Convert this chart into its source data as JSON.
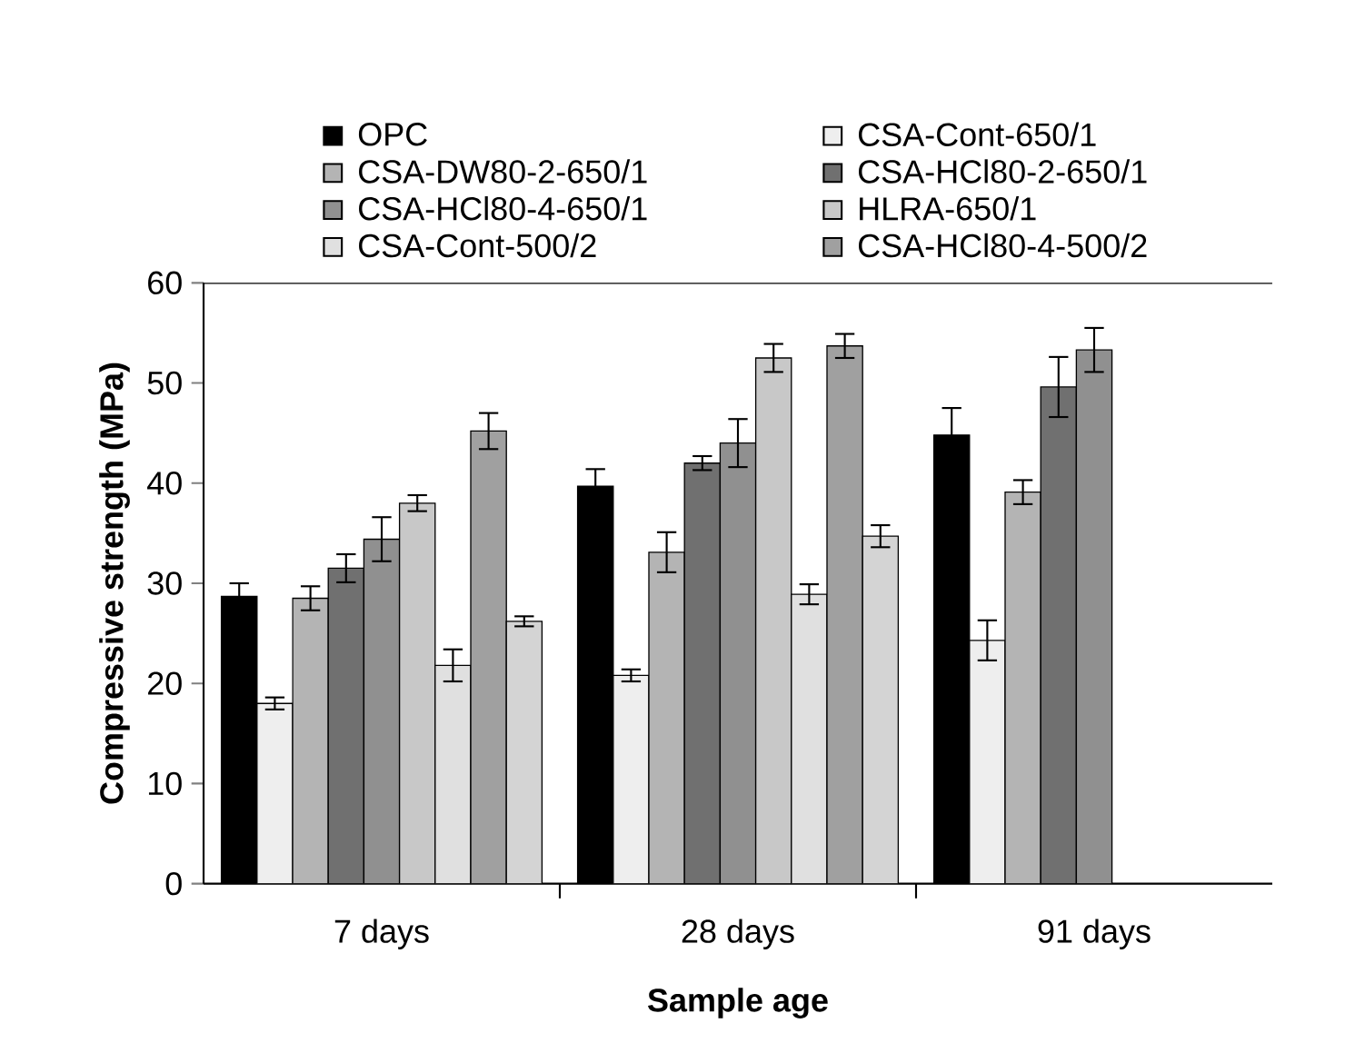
{
  "chart_data": {
    "type": "bar",
    "xlabel": "Sample age",
    "ylabel": "Compressive strength (MPa)",
    "categories": [
      "7 days",
      "28 days",
      "91 days"
    ],
    "series": [
      {
        "name": "OPC",
        "color": "#000000",
        "values": [
          28.7,
          39.7,
          44.8
        ],
        "errors": [
          1.3,
          1.7,
          2.7
        ]
      },
      {
        "name": "CSA-Cont-650/1",
        "color": "#eeeeee",
        "values": [
          18.0,
          20.8,
          24.3
        ],
        "errors": [
          0.6,
          0.6,
          2.0
        ]
      },
      {
        "name": "CSA-DW80-2-650/1",
        "color": "#b4b4b4",
        "values": [
          28.5,
          33.1,
          39.1
        ],
        "errors": [
          1.2,
          2.0,
          1.2
        ]
      },
      {
        "name": "CSA-HCl80-2-650/1",
        "color": "#707070",
        "values": [
          31.5,
          42.0,
          49.6
        ],
        "errors": [
          1.4,
          0.7,
          3.0
        ]
      },
      {
        "name": "CSA-HCl80-4-650/1",
        "color": "#909090",
        "values": [
          34.4,
          44.0,
          53.3
        ],
        "errors": [
          2.2,
          2.4,
          2.2
        ]
      },
      {
        "name": "HLRA-650/1",
        "color": "#c8c8c8",
        "values": [
          38.0,
          52.5,
          null
        ],
        "errors": [
          0.8,
          1.4,
          null
        ]
      },
      {
        "name": "CSA-Cont-500/2",
        "color": "#e0e0e0",
        "values": [
          21.8,
          28.9,
          null
        ],
        "errors": [
          1.6,
          1.0,
          null
        ]
      },
      {
        "name": "CSA-HCl80-4-500/2",
        "color": "#a0a0a0",
        "values": [
          45.2,
          53.7,
          null
        ],
        "errors": [
          1.8,
          1.2,
          null
        ]
      },
      {
        "color": "#d4d4d4",
        "values": [
          26.2,
          34.7,
          null
        ],
        "errors": [
          0.5,
          1.1,
          null
        ]
      }
    ],
    "ylim": [
      0,
      60
    ],
    "yticks": [
      0,
      10,
      20,
      30,
      40,
      50,
      60
    ],
    "grid": false,
    "legend": "top"
  }
}
